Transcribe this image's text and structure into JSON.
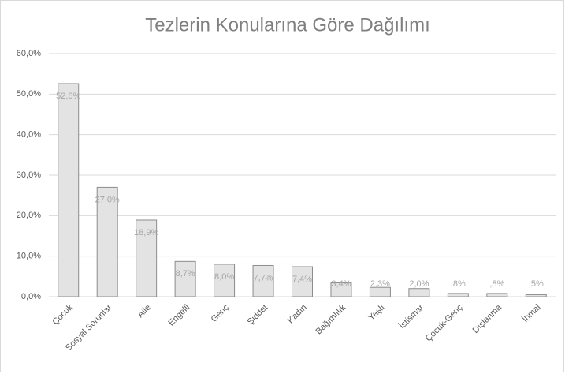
{
  "chart_data": {
    "type": "bar",
    "title": "Tezlerin Konularına Göre Dağılımı",
    "categories": [
      "Çocuk",
      "Sosyal Sorunlar",
      "Aile",
      "Engelli",
      "Genç",
      "Şiddet",
      "Kadın",
      "Bağımlılık",
      "Yaşlı",
      "İstismar",
      "Çocuk-Genç",
      "Dışlanma",
      "İhmal"
    ],
    "values": [
      52.6,
      27.0,
      18.9,
      8.7,
      8.0,
      7.7,
      7.4,
      3.4,
      2.3,
      2.0,
      0.8,
      0.8,
      0.5
    ],
    "value_labels": [
      "52,6%",
      "27,0%",
      "18,9%",
      "8,7%",
      "8,0%",
      "7,7%",
      "7,4%",
      "3,4%",
      "2,3%",
      "2,0%",
      ",8%",
      ",8%",
      ",5%"
    ],
    "color": "#e3e3e3",
    "ylim": [
      0,
      60
    ],
    "yticks": [
      {
        "value": 0,
        "label": "0,0%"
      },
      {
        "value": 10,
        "label": "10,0%"
      },
      {
        "value": 20,
        "label": "20,0%"
      },
      {
        "value": 30,
        "label": "30,0%"
      },
      {
        "value": 40,
        "label": "40,0%"
      },
      {
        "value": 50,
        "label": "50,0%"
      },
      {
        "value": 60,
        "label": "60,0%"
      }
    ],
    "grid": true
  }
}
